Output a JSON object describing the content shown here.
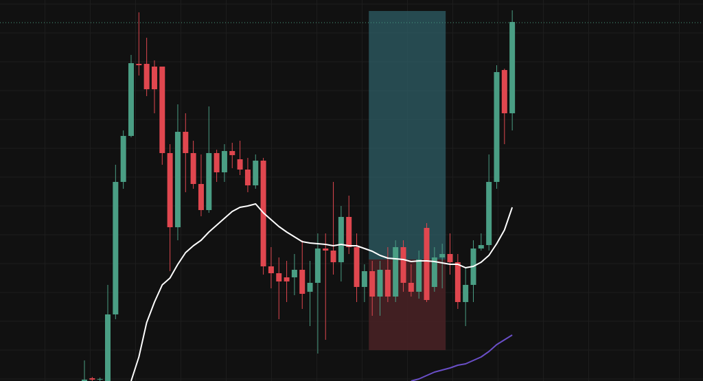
{
  "chart_data": {
    "type": "candlestick",
    "up_color": "#4a9e84",
    "down_color": "#e0474f",
    "ylim": [
      0,
      555
    ],
    "yticks": [
      3,
      45,
      87,
      129,
      171,
      213,
      255,
      297,
      339,
      381,
      423,
      465,
      507,
      549
    ],
    "grid": true,
    "open": [
      0,
      4,
      2,
      0,
      97,
      290,
      357,
      462,
      462,
      458,
      458,
      332,
      224,
      363,
      332,
      287,
      249,
      332,
      304,
      335,
      323,
      308,
      285,
      321,
      167,
      157,
      151,
      151,
      162,
      130,
      143,
      193,
      190,
      173,
      239,
      195,
      137,
      160,
      123,
      162,
      123,
      195,
      143,
      130,
      223,
      137,
      180,
      185,
      173,
      115,
      140,
      193,
      198,
      290,
      453,
      390
    ],
    "high": [
      30,
      6,
      5,
      140,
      315,
      365,
      475,
      537,
      500,
      467,
      458,
      345,
      403,
      390,
      350,
      330,
      400,
      337,
      345,
      347,
      350,
      325,
      330,
      325,
      195,
      180,
      175,
      185,
      205,
      175,
      215,
      215,
      290,
      255,
      270,
      215,
      170,
      175,
      175,
      195,
      205,
      205,
      170,
      190,
      230,
      195,
      200,
      215,
      185,
      165,
      205,
      215,
      330,
      460,
      455,
      540
    ],
    "low": [
      0,
      0,
      0,
      0,
      90,
      280,
      355,
      445,
      415,
      390,
      315,
      160,
      205,
      275,
      280,
      240,
      245,
      290,
      290,
      310,
      300,
      275,
      280,
      155,
      135,
      90,
      115,
      125,
      105,
      80,
      40,
      60,
      155,
      145,
      185,
      115,
      115,
      95,
      95,
      115,
      115,
      130,
      123,
      120,
      115,
      130,
      135,
      155,
      105,
      80,
      115,
      190,
      190,
      280,
      345,
      365
    ],
    "close": [
      2,
      2,
      3,
      97,
      290,
      357,
      463,
      460,
      425,
      425,
      332,
      224,
      363,
      332,
      287,
      249,
      332,
      304,
      335,
      329,
      308,
      285,
      321,
      167,
      157,
      145,
      145,
      162,
      127,
      143,
      193,
      190,
      173,
      239,
      195,
      137,
      160,
      123,
      162,
      123,
      195,
      143,
      130,
      177,
      118,
      180,
      185,
      173,
      115,
      140,
      193,
      198,
      290,
      450,
      390,
      523
    ],
    "series": [
      {
        "color": "#ffffff",
        "values": [
          null,
          null,
          null,
          null,
          null,
          null,
          0,
          35,
          85,
          115,
          140,
          150,
          170,
          187,
          197,
          205,
          217,
          227,
          237,
          247,
          253,
          255,
          258,
          245,
          235,
          225,
          217,
          210,
          203,
          201,
          200,
          199,
          197,
          199,
          197,
          197,
          193,
          189,
          183,
          179,
          178,
          177,
          174,
          175,
          175,
          174,
          172,
          170,
          170,
          165,
          167,
          173,
          183,
          200,
          220,
          253
        ]
      },
      {
        "color": "#6a4fc8",
        "values": [
          null,
          null,
          null,
          null,
          null,
          null,
          null,
          null,
          null,
          null,
          null,
          null,
          null,
          null,
          null,
          null,
          null,
          null,
          null,
          null,
          null,
          null,
          null,
          null,
          null,
          null,
          null,
          null,
          null,
          null,
          null,
          null,
          null,
          null,
          null,
          null,
          null,
          null,
          null,
          null,
          null,
          null,
          0,
          3,
          8,
          13,
          16,
          19,
          23,
          25,
          30,
          35,
          43,
          53,
          60,
          67
        ]
      }
    ],
    "price_line": {
      "value": 522,
      "color": "#4a9e84"
    },
    "position": {
      "x": [
        37,
        46
      ],
      "entry": 177,
      "target": 539,
      "stop": 45,
      "target_color": "#2e5e66",
      "stop_color": "#4a2226"
    }
  }
}
